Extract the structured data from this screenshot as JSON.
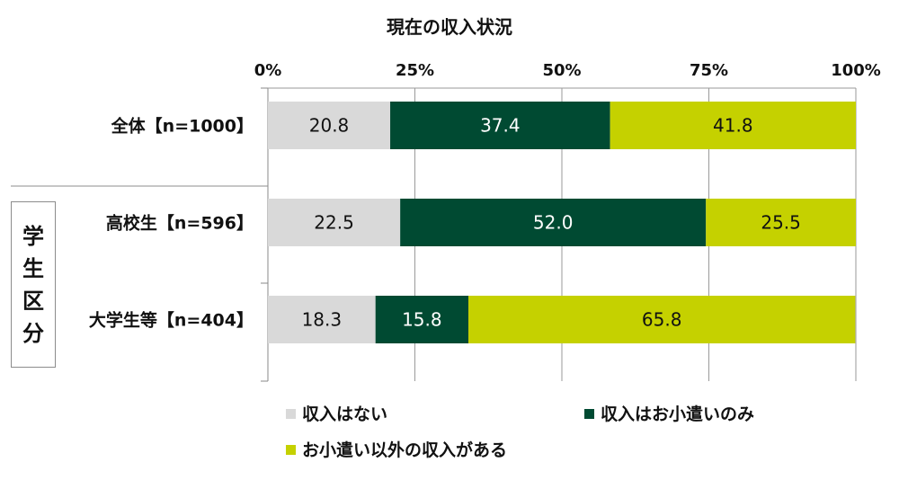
{
  "chart_data": {
    "type": "bar",
    "orientation": "horizontal",
    "stacked": true,
    "percent_scale": true,
    "title": "現在の収入状況",
    "xlim": [
      0,
      100
    ],
    "xticks": [
      "0%",
      "25%",
      "50%",
      "75%",
      "100%"
    ],
    "categories": [
      "全体【n=1000】",
      "高校生【n=596】",
      "大学生等【n=404】"
    ],
    "group_label": [
      "学",
      "生",
      "区",
      "分"
    ],
    "series": [
      {
        "name": "収入はない",
        "color": "#d9d9d9",
        "label_color": "#111111",
        "values": [
          20.8,
          22.5,
          18.3
        ]
      },
      {
        "name": "収入はお小遣いのみ",
        "color": "#004a32",
        "label_color": "#ffffff",
        "values": [
          37.4,
          52.0,
          15.8
        ]
      },
      {
        "name": "お小遣い以外の収入がある",
        "color": "#c5d100",
        "label_color": "#111111",
        "values": [
          41.8,
          25.5,
          65.8
        ]
      }
    ],
    "data_labels": [
      [
        "20.8",
        "37.4",
        "41.8"
      ],
      [
        "22.5",
        "52.0",
        "25.5"
      ],
      [
        "18.3",
        "15.8",
        "65.8"
      ]
    ],
    "grid": true,
    "legend_position": "bottom"
  }
}
